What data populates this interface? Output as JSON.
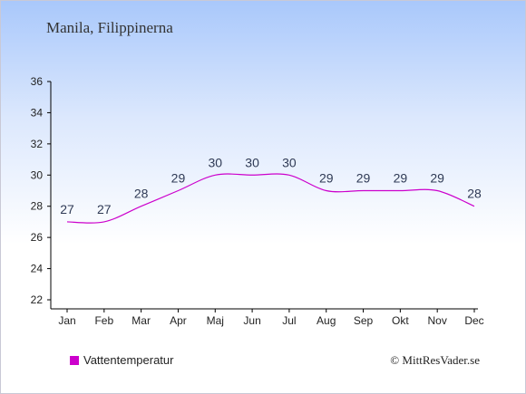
{
  "header": {
    "title": "Manila, Filippinerna"
  },
  "legend": {
    "label": "Vattentemperatur"
  },
  "footer": {
    "copyright": "© MittResVader.se"
  },
  "colors": {
    "line": "#cc00cc",
    "axis": "#000000",
    "label": "#2f3a55"
  },
  "chart_data": {
    "type": "line",
    "categories": [
      "Jan",
      "Feb",
      "Mar",
      "Apr",
      "Maj",
      "Jun",
      "Jul",
      "Aug",
      "Sep",
      "Okt",
      "Nov",
      "Dec"
    ],
    "series": [
      {
        "name": "Vattentemperatur",
        "values": [
          27,
          27,
          28,
          29,
          30,
          30,
          30,
          29,
          29,
          29,
          29,
          28
        ]
      }
    ],
    "ylim": [
      22,
      36
    ],
    "yticks": [
      22,
      24,
      26,
      28,
      30,
      32,
      34,
      36
    ],
    "grid": false,
    "legend_position": "bottom-left"
  }
}
